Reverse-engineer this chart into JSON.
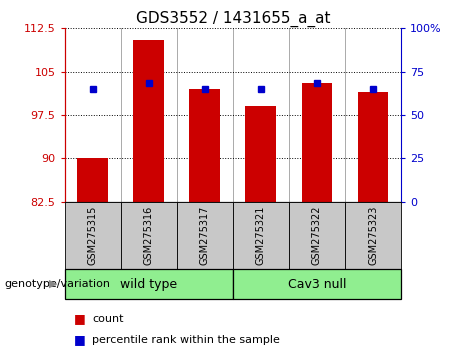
{
  "title": "GDS3552 / 1431655_a_at",
  "categories": [
    "GSM275315",
    "GSM275316",
    "GSM275317",
    "GSM275321",
    "GSM275322",
    "GSM275323"
  ],
  "red_bar_values": [
    90.0,
    110.5,
    102.0,
    99.0,
    103.0,
    101.5
  ],
  "blue_dot_values": [
    102.0,
    103.0,
    102.0,
    102.0,
    103.0,
    102.0
  ],
  "ylim_left": [
    82.5,
    112.5
  ],
  "yticks_left": [
    82.5,
    90.0,
    97.5,
    105.0,
    112.5
  ],
  "ylim_right": [
    0,
    100
  ],
  "yticks_right": [
    0,
    25,
    50,
    75,
    100
  ],
  "ytick_labels_right": [
    "0",
    "25",
    "50",
    "75",
    "100%"
  ],
  "bar_color": "#cc0000",
  "dot_color": "#0000cc",
  "bar_width": 0.55,
  "groups": [
    {
      "label": "wild type",
      "span": [
        0,
        3
      ],
      "color": "#90ee90"
    },
    {
      "label": "Cav3 null",
      "span": [
        3,
        6
      ],
      "color": "#90ee90"
    }
  ],
  "group_label": "genotype/variation",
  "legend_count_label": "count",
  "legend_pct_label": "percentile rank within the sample",
  "bg_color_plot": "#ffffff",
  "bg_color_tick": "#c8c8c8",
  "left_axis_color": "#cc0000",
  "right_axis_color": "#0000cc",
  "title_fontsize": 11,
  "tick_fontsize": 8,
  "cat_fontsize": 7,
  "legend_fontsize": 8
}
